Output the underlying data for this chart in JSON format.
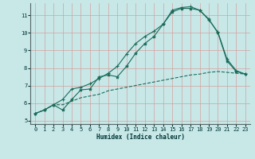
{
  "title": "",
  "xlabel": "Humidex (Indice chaleur)",
  "ylabel": "",
  "bg_color": "#c8e8e8",
  "grid_color_h": "#d4a8a8",
  "grid_color_v": "#d4a8a8",
  "line_color": "#1a6b5a",
  "xlim": [
    -0.5,
    23.5
  ],
  "ylim": [
    4.8,
    11.7
  ],
  "xticks": [
    0,
    1,
    2,
    3,
    4,
    5,
    6,
    7,
    8,
    9,
    10,
    11,
    12,
    13,
    14,
    15,
    16,
    17,
    18,
    19,
    20,
    21,
    22,
    23
  ],
  "yticks": [
    5,
    6,
    7,
    8,
    9,
    10,
    11
  ],
  "curve1_x": [
    0,
    1,
    2,
    3,
    4,
    5,
    6,
    7,
    8,
    9,
    10,
    11,
    12,
    13,
    14,
    15,
    16,
    17,
    18,
    19,
    20,
    21,
    22,
    23
  ],
  "curve1_y": [
    5.4,
    5.6,
    5.9,
    6.2,
    6.8,
    6.9,
    7.1,
    7.4,
    7.7,
    8.1,
    8.8,
    9.4,
    9.8,
    10.1,
    10.5,
    11.3,
    11.45,
    11.5,
    11.3,
    10.75,
    10.05,
    8.5,
    7.85,
    7.65
  ],
  "curve2_x": [
    0,
    1,
    2,
    3,
    4,
    5,
    6,
    7,
    8,
    9,
    10,
    11,
    12,
    13,
    14,
    15,
    16,
    17,
    18,
    19,
    20,
    21,
    22,
    23
  ],
  "curve2_y": [
    5.4,
    5.6,
    5.9,
    5.6,
    6.2,
    6.75,
    6.8,
    7.5,
    7.6,
    7.5,
    8.1,
    8.85,
    9.4,
    9.8,
    10.5,
    11.2,
    11.4,
    11.4,
    11.3,
    10.8,
    10.0,
    8.4,
    7.8,
    7.65
  ],
  "curve3_x": [
    0,
    1,
    2,
    3,
    4,
    5,
    6,
    7,
    8,
    9,
    10,
    11,
    12,
    13,
    14,
    15,
    16,
    17,
    18,
    19,
    20,
    21,
    22,
    23
  ],
  "curve3_y": [
    5.4,
    5.6,
    5.9,
    5.9,
    6.1,
    6.3,
    6.4,
    6.5,
    6.7,
    6.8,
    6.9,
    7.0,
    7.1,
    7.2,
    7.3,
    7.4,
    7.5,
    7.6,
    7.65,
    7.75,
    7.8,
    7.75,
    7.7,
    7.65
  ]
}
